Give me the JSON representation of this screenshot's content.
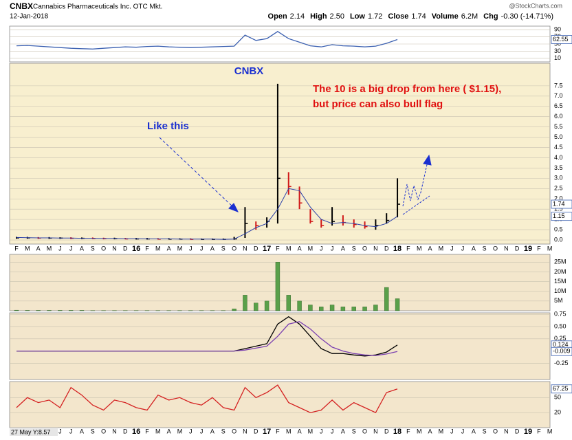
{
  "header": {
    "symbol": "CNBX",
    "name": "Cannabics Pharmaceuticals Inc. OTC Mkt.",
    "date": "12-Jan-2018",
    "source": "@StockCharts.com",
    "quote": [
      {
        "label": "Open",
        "value": "2.14"
      },
      {
        "label": "High",
        "value": "2.50"
      },
      {
        "label": "Low",
        "value": "1.72"
      },
      {
        "label": "Close",
        "value": "1.74"
      },
      {
        "label": "Volume",
        "value": "6.2M"
      },
      {
        "label": "Chg",
        "value": "-0.30 (-14.71%)"
      }
    ]
  },
  "footer": "27 May Y:8.57",
  "chart_data": [
    {
      "type": "line",
      "ylim": [
        0,
        100
      ],
      "yticks": [
        10,
        30,
        50,
        70,
        90
      ],
      "tags": [
        62.55
      ],
      "series": [
        {
          "color": "#3a5fb0",
          "values": [
            45,
            46,
            44,
            42,
            40,
            38,
            37,
            36,
            38,
            40,
            42,
            41,
            43,
            44,
            42,
            41,
            40,
            41,
            42,
            43,
            44,
            75,
            60,
            65,
            85,
            65,
            55,
            45,
            42,
            48,
            45,
            44,
            42,
            44,
            52,
            62.55,
            null,
            null,
            null,
            null,
            null,
            null,
            null,
            null,
            null,
            null,
            null,
            null,
            null,
            null
          ]
        }
      ]
    },
    {
      "type": "ohlc",
      "ylim": [
        -0.2,
        8.6
      ],
      "categories": [
        "F",
        "M",
        "A",
        "M",
        "J",
        "J",
        "A",
        "S",
        "O",
        "N",
        "D",
        "16",
        "F",
        "M",
        "A",
        "M",
        "J",
        "J",
        "A",
        "S",
        "O",
        "N",
        "D",
        "17",
        "F",
        "M",
        "A",
        "M",
        "J",
        "J",
        "A",
        "S",
        "O",
        "N",
        "D",
        "18",
        "F",
        "M",
        "A",
        "M",
        "J",
        "J",
        "A",
        "S",
        "O",
        "N",
        "D",
        "19",
        "F",
        "M"
      ],
      "yticks": [
        {
          "value": 0,
          "label": "0.0"
        },
        0.5,
        {
          "value": 1,
          "label": "1.0"
        },
        1.5,
        {
          "value": 2,
          "label": "2.0"
        },
        2.5,
        {
          "value": 3,
          "label": "3.0"
        },
        3.5,
        {
          "value": 4,
          "label": "4.0"
        },
        4.5,
        {
          "value": 5,
          "label": "5.0"
        },
        5.5,
        {
          "value": 6,
          "label": "6.0"
        },
        6.5,
        {
          "value": 7,
          "label": "7.0"
        },
        7.5
      ],
      "tags": [
        1.74,
        1.15
      ],
      "high": [
        0.15,
        0.15,
        0.14,
        0.14,
        0.13,
        0.13,
        0.12,
        0.12,
        0.11,
        0.11,
        0.1,
        0.1,
        0.1,
        0.09,
        0.09,
        0.08,
        0.08,
        0.07,
        0.07,
        0.07,
        0.15,
        1.6,
        0.9,
        1.1,
        7.6,
        3.3,
        2.6,
        1.5,
        1.0,
        1.6,
        1.2,
        1.0,
        0.9,
        1.0,
        1.3,
        3.0,
        null,
        null,
        null,
        null,
        null,
        null,
        null,
        null,
        null,
        null,
        null,
        null,
        null,
        null
      ],
      "low": [
        0.06,
        0.06,
        0.05,
        0.05,
        0.05,
        0.04,
        0.04,
        0.04,
        0.03,
        0.03,
        0.03,
        0.02,
        0.02,
        0.02,
        0.02,
        0.02,
        0.01,
        0.01,
        0.01,
        0.01,
        0.01,
        0.1,
        0.5,
        0.6,
        0.8,
        2.2,
        1.5,
        0.8,
        0.6,
        0.7,
        0.7,
        0.6,
        0.55,
        0.5,
        0.8,
        1.1,
        null,
        null,
        null,
        null,
        null,
        null,
        null,
        null,
        null,
        null,
        null,
        null,
        null,
        null
      ],
      "close": [
        0.1,
        0.1,
        0.09,
        0.09,
        0.09,
        0.08,
        0.08,
        0.07,
        0.06,
        0.06,
        0.05,
        0.05,
        0.05,
        0.04,
        0.04,
        0.04,
        0.03,
        0.03,
        0.03,
        0.03,
        0.05,
        0.8,
        0.7,
        0.9,
        3.0,
        2.6,
        1.8,
        0.9,
        0.7,
        0.9,
        0.85,
        0.75,
        0.65,
        0.7,
        0.95,
        1.74,
        null,
        null,
        null,
        null,
        null,
        null,
        null,
        null,
        null,
        null,
        null,
        null,
        null,
        null
      ],
      "ma": [
        0.12,
        0.11,
        0.1,
        0.1,
        0.09,
        0.09,
        0.08,
        0.08,
        0.07,
        0.07,
        0.06,
        0.06,
        0.05,
        0.05,
        0.05,
        0.04,
        0.04,
        0.04,
        0.04,
        0.03,
        0.04,
        0.3,
        0.6,
        0.8,
        1.5,
        2.5,
        2.4,
        1.6,
        1.0,
        0.8,
        0.85,
        0.8,
        0.7,
        0.65,
        0.8,
        1.15,
        null,
        null,
        null,
        null,
        null,
        null,
        null,
        null,
        null,
        null,
        null,
        null,
        null,
        null
      ],
      "ma_color": "#2a3fa8",
      "annotations": [
        "CNBX",
        "Like this",
        "The 10 is a big drop from here ( $1.15),",
        "but price can also bull flag"
      ]
    },
    {
      "type": "bar",
      "ylim": [
        0,
        29
      ],
      "color": "#5aa04a",
      "yticks": [
        {
          "value": 5,
          "label": "5M"
        },
        {
          "value": 10,
          "label": "10M"
        },
        {
          "value": 15,
          "label": "15M"
        },
        {
          "value": 20,
          "label": "20M"
        },
        {
          "value": 25,
          "label": "25M"
        }
      ],
      "values": [
        0.3,
        0.2,
        0.2,
        0.2,
        0.2,
        0.2,
        0.2,
        0.1,
        0.1,
        0.1,
        0.1,
        0.1,
        0.1,
        0.1,
        0.1,
        0.1,
        0.1,
        0.1,
        0.1,
        0.1,
        1,
        8,
        4,
        5,
        25,
        8,
        5,
        3,
        2,
        3,
        2,
        2,
        2,
        3,
        12,
        6.2,
        null,
        null,
        null,
        null,
        null,
        null,
        null,
        null,
        null,
        null,
        null,
        null,
        null,
        null
      ]
    },
    {
      "type": "line",
      "ylim": [
        -0.58,
        0.78
      ],
      "yticks": [
        -0.25,
        0.25,
        {
          "value": 0.5,
          "label": "0.50"
        },
        0.75
      ],
      "tags": [
        0.124,
        -0.009
      ],
      "series": [
        {
          "color": "#000000",
          "values": [
            0,
            0,
            0,
            0,
            0,
            0,
            0,
            0,
            0,
            0,
            0,
            0,
            0,
            0,
            0,
            0,
            0,
            0,
            0,
            0,
            0,
            0.05,
            0.1,
            0.15,
            0.55,
            0.7,
            0.55,
            0.3,
            0.05,
            -0.05,
            -0.05,
            -0.08,
            -0.1,
            -0.08,
            -0.02,
            0.124,
            null,
            null,
            null,
            null,
            null,
            null,
            null,
            null,
            null,
            null,
            null,
            null,
            null,
            null
          ]
        },
        {
          "color": "#7a3fb0",
          "values": [
            0,
            0,
            0,
            0,
            0,
            0,
            0,
            0,
            0,
            0,
            0,
            0,
            0,
            0,
            0,
            0,
            0,
            0,
            0,
            0,
            0,
            0.02,
            0.06,
            0.1,
            0.3,
            0.55,
            0.6,
            0.45,
            0.25,
            0.08,
            0,
            -0.05,
            -0.08,
            -0.09,
            -0.06,
            -0.009,
            null,
            null,
            null,
            null,
            null,
            null,
            null,
            null,
            null,
            null,
            null,
            null,
            null,
            null
          ]
        }
      ]
    },
    {
      "type": "line",
      "ylim": [
        -10,
        82
      ],
      "yticks": [
        20,
        50
      ],
      "tags": [
        67.25
      ],
      "series": [
        {
          "color": "#d42020",
          "values": [
            30,
            50,
            40,
            45,
            30,
            70,
            55,
            35,
            25,
            45,
            40,
            30,
            25,
            55,
            45,
            50,
            40,
            35,
            50,
            30,
            25,
            70,
            50,
            60,
            75,
            40,
            30,
            20,
            25,
            45,
            25,
            40,
            30,
            20,
            60,
            67.25,
            null,
            null,
            null,
            null,
            null,
            null,
            null,
            null,
            null,
            null,
            null,
            null,
            null,
            null
          ]
        }
      ]
    }
  ]
}
